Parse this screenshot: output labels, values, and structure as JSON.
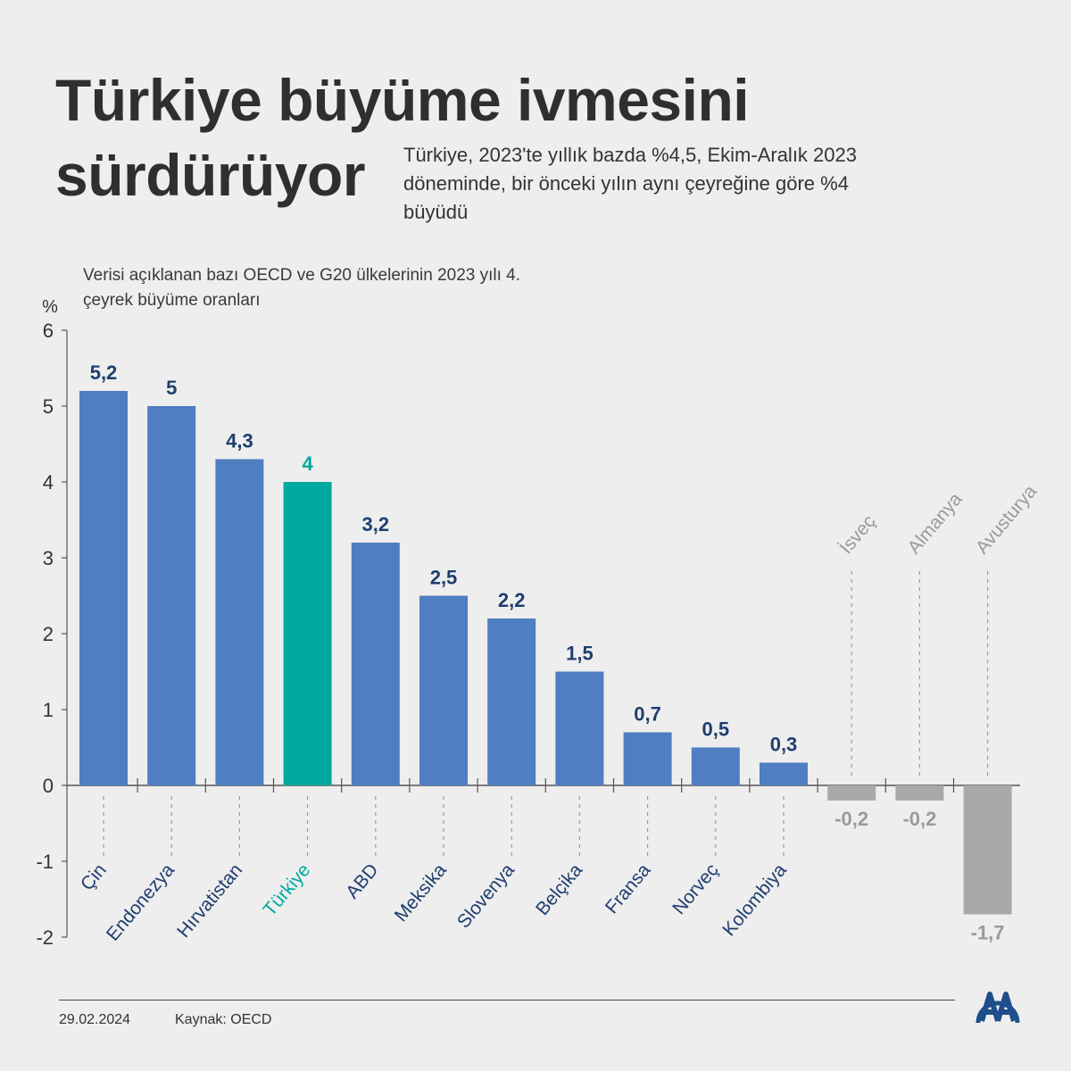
{
  "header": {
    "title": "Türkiye büyüme ivmesini sürdürüyor",
    "subtitle": "Türkiye, 2023'te yıllık bazda %4,5, Ekim-Aralık 2023 döneminde, bir önceki yılın aynı çeyreğine göre %4 büyüdü"
  },
  "chart_note": "Verisi açıklanan bazı OECD ve G20 ülkelerinin 2023 yılı 4. çeyrek büyüme oranları",
  "chart_data": {
    "type": "bar",
    "title": "Verisi açıklanan bazı OECD ve G20 ülkelerinin 2023 yılı 4. çeyrek büyüme oranları",
    "ylabel": "%",
    "ylim": [
      -2,
      6
    ],
    "yticks": [
      6,
      5,
      4,
      3,
      2,
      1,
      0,
      -1,
      -2
    ],
    "grid": false,
    "categories": [
      "Çin",
      "Endonezya",
      "Hırvatistan",
      "Türkiye",
      "ABD",
      "Meksika",
      "Slovenya",
      "Belçika",
      "Fransa",
      "Norveç",
      "Kolombiya",
      "İsveç",
      "Almanya",
      "Avusturya"
    ],
    "values": [
      5.2,
      5,
      4.3,
      4,
      3.2,
      2.5,
      2.2,
      1.5,
      0.7,
      0.5,
      0.3,
      -0.2,
      -0.2,
      -1.7
    ],
    "value_labels": [
      "5,2",
      "5",
      "4,3",
      "4",
      "3,2",
      "2,5",
      "2,2",
      "1,5",
      "0,7",
      "0,5",
      "0,3",
      "-0,2",
      "-0,2",
      "-1,7"
    ],
    "highlight": "Türkiye",
    "colors": {
      "positive": "#4f7ec1",
      "highlight": "#00a99d",
      "negative": "#a9a9a9",
      "label_dark": "#1f3e6e",
      "label_gray": "#9a9a9a"
    }
  },
  "footer": {
    "date": "29.02.2024",
    "source": "Kaynak: OECD"
  },
  "logo": {
    "icon": "aa-logo-icon",
    "color": "#1f4e8c"
  }
}
